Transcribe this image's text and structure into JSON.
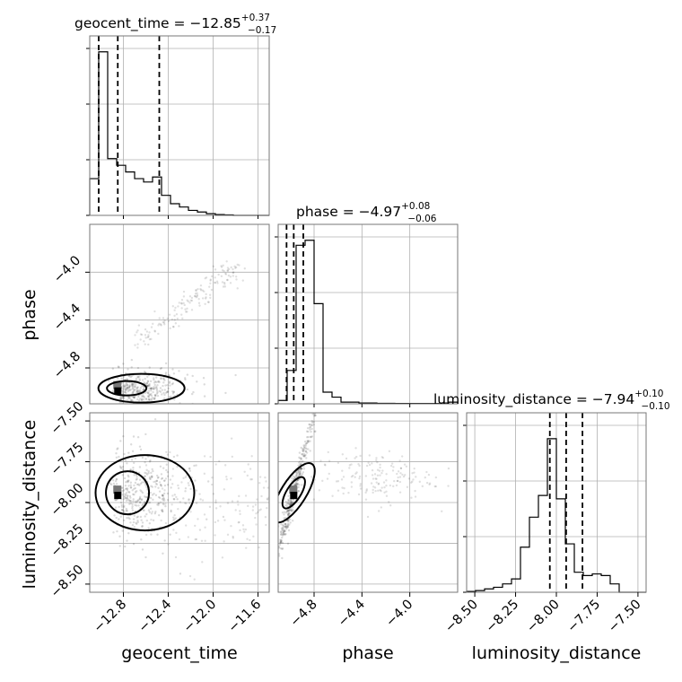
{
  "chart_data": {
    "type": "corner",
    "parameters": [
      "geocent_time",
      "phase",
      "luminosity_distance"
    ],
    "titles": [
      {
        "text": "geocent_time = −12.85",
        "sup": "+0.37",
        "sub": "−0.17"
      },
      {
        "text": "phase = −4.97",
        "sup": "+0.08",
        "sub": "−0.06"
      },
      {
        "text": "luminosity_distance = −7.94",
        "sup": "+0.10",
        "sub": "−0.10"
      }
    ],
    "axis_labels": {
      "x": [
        "geocent_time",
        "phase",
        "luminosity_distance"
      ],
      "y": [
        "phase",
        "luminosity_distance"
      ]
    },
    "ranges": [
      [
        -13.1,
        -11.5
      ],
      [
        -5.1,
        -3.6
      ],
      [
        -8.55,
        -7.45
      ]
    ],
    "ticks": [
      {
        "values": [
          -12.8,
          -12.4,
          -12.0,
          -11.6
        ],
        "labels": [
          "−12.8",
          "−12.4",
          "−12.0",
          "−11.6"
        ]
      },
      {
        "values": [
          -4.8,
          -4.4,
          -4.0
        ],
        "labels": [
          "−4.8",
          "−4.4",
          "−4.0"
        ]
      },
      {
        "values": [
          -8.5,
          -8.25,
          -8.0,
          -7.75,
          -7.5
        ],
        "labels": [
          "−8.50",
          "−8.25",
          "−8.00",
          "−7.75",
          "−7.50"
        ]
      }
    ],
    "quantiles": [
      [
        -13.02,
        -12.85,
        -12.48
      ],
      [
        -5.03,
        -4.97,
        -4.89
      ],
      [
        -8.04,
        -7.94,
        -7.84
      ]
    ],
    "histograms": [
      {
        "edges_start": -13.1,
        "bin_width": 0.08,
        "counts": [
          0.22,
          0.98,
          0.34,
          0.3,
          0.26,
          0.22,
          0.2,
          0.23,
          0.12,
          0.07,
          0.05,
          0.03,
          0.02,
          0.01,
          0.005,
          0.003,
          0.0,
          0.0,
          0.0,
          0.0
        ]
      },
      {
        "edges_start": -5.1,
        "bin_width": 0.075,
        "counts": [
          0.02,
          0.2,
          0.95,
          0.98,
          0.6,
          0.07,
          0.04,
          0.01,
          0.01,
          0.005,
          0.005,
          0.003,
          0.003,
          0.002,
          0.002,
          0.002,
          0.002,
          0.002,
          0.005,
          0.01
        ]
      },
      {
        "edges_start": -8.55,
        "bin_width": 0.055,
        "counts": [
          0.005,
          0.01,
          0.02,
          0.03,
          0.05,
          0.08,
          0.27,
          0.45,
          0.58,
          0.92,
          0.56,
          0.29,
          0.12,
          0.1,
          0.11,
          0.1,
          0.05,
          0.0,
          0.0,
          0.0
        ]
      }
    ],
    "grid": true
  }
}
